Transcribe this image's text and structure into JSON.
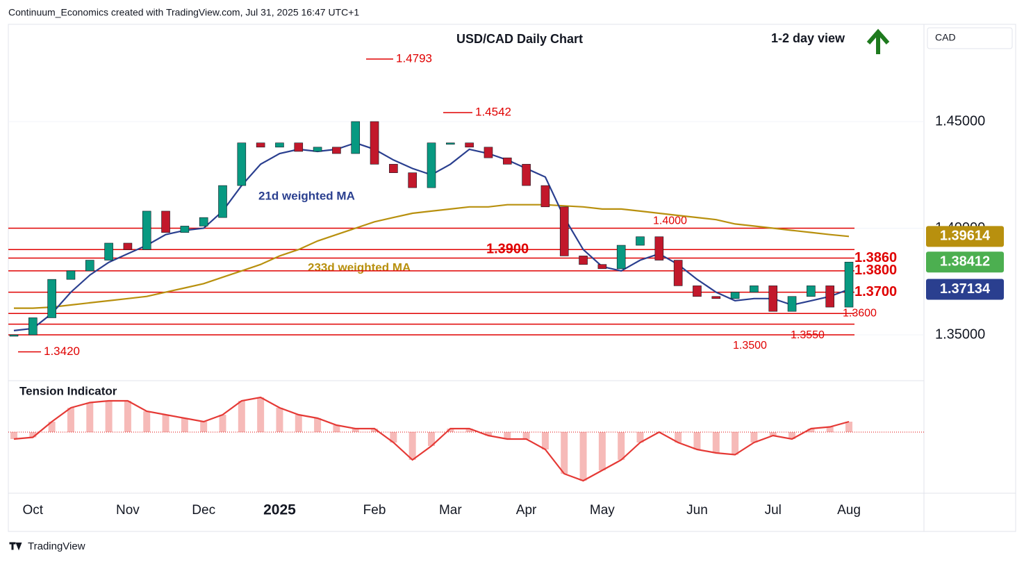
{
  "header": "Continuum_Economics created with TradingView.com, Jul 31, 2025 16:47 UTC+1",
  "footer": "TradingView",
  "chart_data": {
    "type": "candlestick",
    "title": "USD/CAD Daily Chart",
    "subtitle": "1-2 day view",
    "currency": "CAD",
    "categories": [
      null,
      "Oct",
      null,
      null,
      null,
      null,
      "Nov",
      null,
      null,
      null,
      "Dec",
      null,
      null,
      null,
      "2025",
      null,
      null,
      null,
      null,
      "Feb",
      null,
      null,
      null,
      "Mar",
      null,
      null,
      null,
      "Apr",
      null,
      null,
      null,
      "May",
      null,
      null,
      null,
      null,
      "Jun",
      null,
      null,
      null,
      "Jul",
      null,
      null,
      null,
      "Aug"
    ],
    "ylim": [
      1.3285,
      1.4956
    ],
    "yticks": [
      {
        "value": 1.35,
        "label": "1.35000"
      },
      {
        "value": 1.4,
        "label": "1.40000"
      },
      {
        "value": 1.45,
        "label": "1.45000"
      }
    ],
    "up_color": "#089981",
    "down_color": "#c2182b",
    "series": [
      {
        "values": [
          1.35,
          1.358,
          1.376,
          1.38,
          1.385,
          1.393,
          1.39,
          1.408,
          1.398,
          1.401,
          1.405,
          1.42,
          1.44,
          1.438,
          1.44,
          1.436,
          1.438,
          1.435,
          1.45,
          1.43,
          1.426,
          1.419,
          1.44,
          1.44,
          1.438,
          1.433,
          1.43,
          1.42,
          1.41,
          1.387,
          1.383,
          1.381,
          1.392,
          1.396,
          1.385,
          1.373,
          1.368,
          1.367,
          1.37,
          1.373,
          1.361,
          1.368,
          1.373,
          1.363,
          1.38412
        ],
        "color": "#4caf50",
        "price_tag": "1.38412"
      },
      {
        "name": "21d weighted MA",
        "color": "#2a3f8f",
        "values": [
          1.352,
          1.353,
          1.36,
          1.37,
          1.378,
          1.384,
          1.388,
          1.392,
          1.397,
          1.399,
          1.4,
          1.408,
          1.42,
          1.43,
          1.435,
          1.437,
          1.436,
          1.437,
          1.44,
          1.437,
          1.432,
          1.428,
          1.425,
          1.43,
          1.437,
          1.435,
          1.432,
          1.428,
          1.424,
          1.405,
          1.39,
          1.382,
          1.38,
          1.385,
          1.388,
          1.383,
          1.376,
          1.37,
          1.366,
          1.367,
          1.367,
          1.364,
          1.366,
          1.368,
          1.37134
        ],
        "price_tag": "1.37134"
      },
      {
        "name": "233d weighted MA",
        "color": "#b8900e",
        "values": [
          1.3625,
          1.3625,
          1.363,
          1.364,
          1.365,
          1.366,
          1.367,
          1.368,
          1.37,
          1.372,
          1.374,
          1.377,
          1.38,
          1.383,
          1.387,
          1.39,
          1.394,
          1.397,
          1.4,
          1.403,
          1.405,
          1.407,
          1.408,
          1.409,
          1.41,
          1.41,
          1.411,
          1.411,
          1.411,
          1.4105,
          1.41,
          1.409,
          1.409,
          1.408,
          1.407,
          1.406,
          1.405,
          1.404,
          1.402,
          1.401,
          1.4,
          1.399,
          1.398,
          1.397,
          1.39614
        ],
        "price_tag": "1.39614"
      }
    ],
    "levels": [
      {
        "value": 1.4,
        "label": "1.4000"
      },
      {
        "value": 1.39,
        "label": "1.3900"
      },
      {
        "value": 1.386,
        "label": "1.3860"
      },
      {
        "value": 1.38,
        "label": "1.3800"
      },
      {
        "value": 1.37,
        "label": "1.3700"
      },
      {
        "value": 1.36,
        "label": "1.3600"
      },
      {
        "value": 1.355,
        "label": "1.3550"
      },
      {
        "value": 1.35,
        "label": "1.3500"
      }
    ],
    "extremes": [
      {
        "value": 1.342,
        "label": "1.3420"
      },
      {
        "value": 1.4793,
        "label": "1.4793"
      },
      {
        "value": 1.4542,
        "label": "1.4542"
      }
    ],
    "level_color": "#e00000",
    "indicator": {
      "title": "Tension Indicator",
      "color": "#e53935",
      "ylim": [
        -1.76,
        1.48
      ],
      "values": [
        -0.2,
        -0.15,
        0.3,
        0.7,
        0.85,
        0.9,
        0.9,
        0.6,
        0.5,
        0.4,
        0.3,
        0.5,
        0.9,
        1.0,
        0.7,
        0.5,
        0.4,
        0.2,
        0.1,
        0.1,
        -0.3,
        -0.8,
        -0.4,
        0.1,
        0.1,
        -0.1,
        -0.2,
        -0.2,
        -0.5,
        -1.2,
        -1.4,
        -1.1,
        -0.8,
        -0.3,
        0.0,
        -0.3,
        -0.5,
        -0.6,
        -0.65,
        -0.3,
        -0.1,
        -0.2,
        0.1,
        0.15,
        0.3
      ]
    }
  }
}
